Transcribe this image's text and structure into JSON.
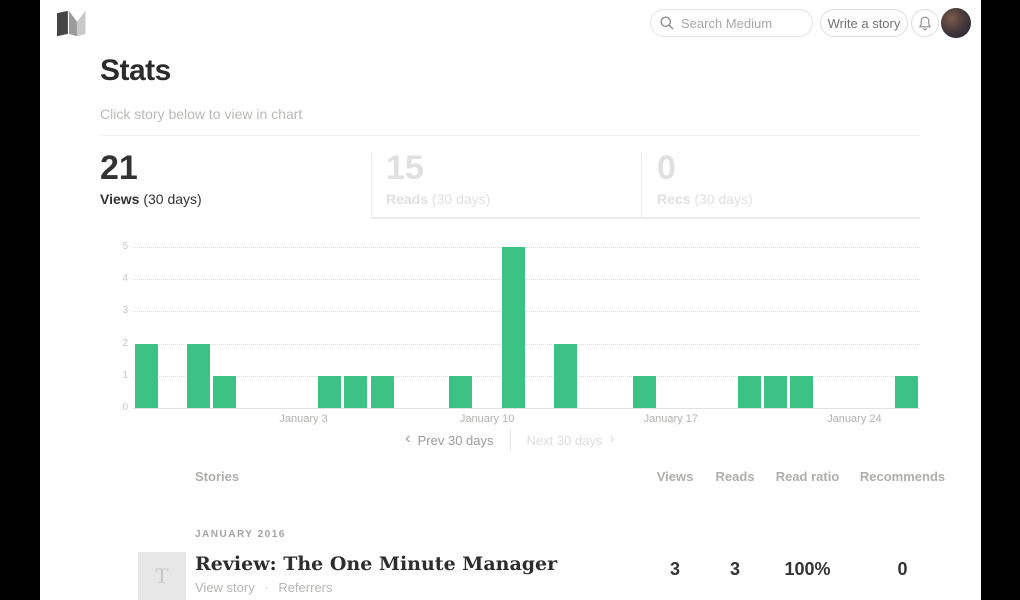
{
  "topbar": {
    "search": {
      "placeholder": "Search Medium"
    },
    "write_story_label": "Write a story"
  },
  "page": {
    "title": "Stats",
    "subtitle": "Click story below to view in chart"
  },
  "stat_tabs": [
    {
      "value": "21",
      "metric": "Views",
      "period": " (30 days)",
      "state": "active"
    },
    {
      "value": "15",
      "metric": "Reads",
      "period": " (30 days)",
      "state": "inactive"
    },
    {
      "value": "0",
      "metric": "Recs",
      "period": " (30 days)",
      "state": "inactive"
    }
  ],
  "chart_data": {
    "type": "bar",
    "metric": "Views (30 days)",
    "total": 21,
    "values": [
      2,
      0,
      2,
      1,
      0,
      0,
      0,
      1,
      1,
      1,
      0,
      0,
      1,
      0,
      5,
      0,
      2,
      0,
      0,
      1,
      0,
      0,
      0,
      1,
      1,
      1,
      0,
      0,
      0,
      1
    ],
    "xticks": [
      {
        "slot": 6,
        "label": "January 3"
      },
      {
        "slot": 13,
        "label": "January 10"
      },
      {
        "slot": 20,
        "label": "January 17"
      },
      {
        "slot": 27,
        "label": "January 24"
      }
    ],
    "yticks": [
      0,
      1,
      2,
      3,
      4,
      5
    ],
    "ylim": [
      0,
      5
    ],
    "bar_color": "#3dc285",
    "grid": "dotted-horizontal",
    "legend": "none"
  },
  "chart_nav": {
    "prev_label": "Prev 30 days",
    "next_label": "Next 30 days",
    "prev_chevron": "‹",
    "next_chevron": "›"
  },
  "table": {
    "stories_header": "Stories",
    "columns": [
      "Views",
      "Reads",
      "Read ratio",
      "Recommends"
    ],
    "month_label": "JANUARY 2016",
    "rows": [
      {
        "thumb_letter": "T",
        "title": "Review: The One Minute Manager",
        "link_view": "View story",
        "link_referrers": "Referrers",
        "link_separator": "·",
        "views": "3",
        "reads": "3",
        "read_ratio": "100%",
        "recommends": "0"
      }
    ]
  },
  "colors": {
    "bar_green": "#3dc285",
    "active_text": "#333333",
    "inactive_text": "#e0e0e0",
    "muted_text": "#b3b3b1"
  }
}
